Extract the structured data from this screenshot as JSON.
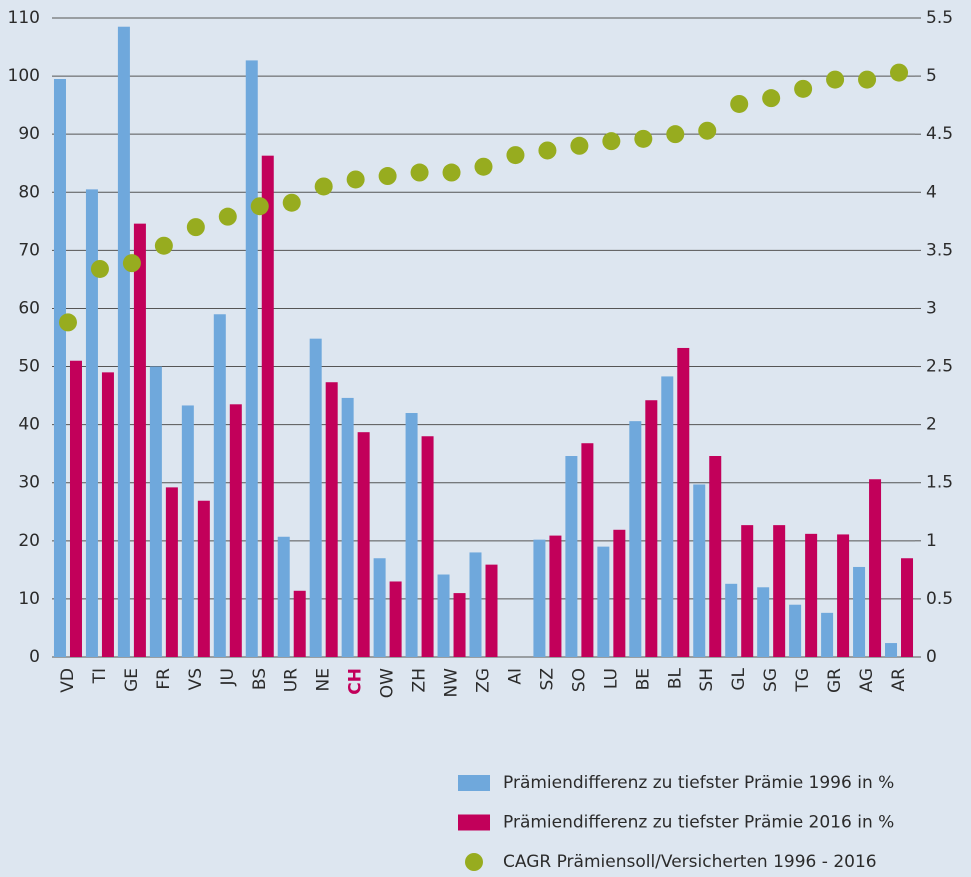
{
  "chart_data": {
    "type": "bar",
    "categories": [
      "VD",
      "TI",
      "GE",
      "FR",
      "VS",
      "JU",
      "BS",
      "UR",
      "NE",
      "CH",
      "OW",
      "ZH",
      "NW",
      "ZG",
      "AI",
      "SZ",
      "SO",
      "LU",
      "BE",
      "BL",
      "SH",
      "GL",
      "SG",
      "TG",
      "GR",
      "AG",
      "AR"
    ],
    "series": [
      {
        "name": "Prämiendifferenz zu tiefster Prämie 1996 in %",
        "color": "#6fa8dc",
        "values": [
          99.5,
          80.5,
          108.5,
          50,
          43.3,
          59,
          102.7,
          20.7,
          54.8,
          44.6,
          17,
          42,
          14.2,
          18,
          0,
          20.2,
          34.6,
          19,
          40.6,
          48.3,
          29.7,
          12.6,
          12,
          9,
          7.6,
          15.5,
          2.4
        ]
      },
      {
        "name": "Prämiendifferenz zu tiefster Prämie 2016 in %",
        "color": "#c2005a",
        "values": [
          51,
          49,
          74.6,
          29.2,
          26.9,
          43.5,
          86.3,
          11.4,
          47.3,
          38.7,
          13,
          38,
          11,
          15.9,
          0,
          20.9,
          36.8,
          21.9,
          44.2,
          53.2,
          34.6,
          22.7,
          22.7,
          21.2,
          21.1,
          30.6,
          17
        ]
      },
      {
        "name": "CAGR Prämiensoll/Versicherten 1996 - 2016",
        "color": "#97ac1f",
        "type": "scatter",
        "axis": "y2",
        "values": [
          2.88,
          3.34,
          3.39,
          3.54,
          3.7,
          3.79,
          3.88,
          3.91,
          4.05,
          4.11,
          4.14,
          4.17,
          4.17,
          4.22,
          4.32,
          4.36,
          4.4,
          4.44,
          4.46,
          4.5,
          4.53,
          4.76,
          4.81,
          4.89,
          4.97,
          4.97,
          5.03
        ]
      }
    ],
    "ylim": [
      0,
      110
    ],
    "yticks": [
      0,
      10,
      20,
      30,
      40,
      50,
      60,
      70,
      80,
      90,
      100,
      110
    ],
    "y2lim": [
      0,
      5.5
    ],
    "y2ticks": [
      0,
      0.5,
      1,
      1.5,
      2,
      2.5,
      3,
      3.5,
      4,
      4.5,
      5,
      5.5
    ],
    "grid": true,
    "legend": "bottom-right",
    "highlight_index": 9,
    "highlight_color": "#c2005a"
  }
}
